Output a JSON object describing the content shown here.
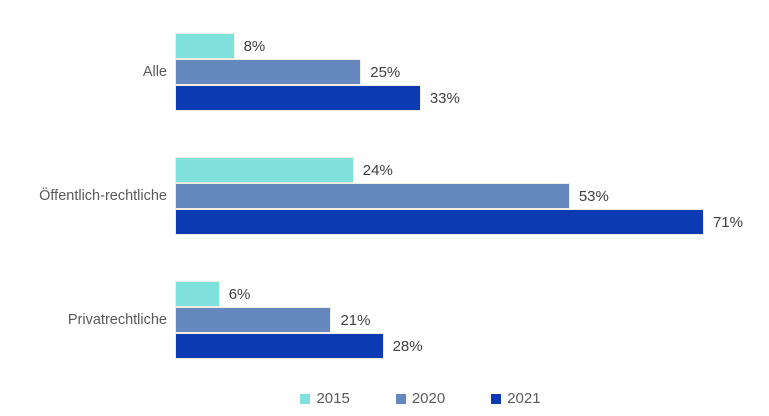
{
  "chart_data": {
    "type": "bar",
    "orientation": "horizontal",
    "title": "",
    "categories": [
      "Alle",
      "Öffentlich-rechtliche",
      "Privatrechtliche"
    ],
    "series": [
      {
        "name": "2015",
        "color": "#7FE0DC",
        "values": [
          8,
          24,
          6
        ]
      },
      {
        "name": "2020",
        "color": "#6588BE",
        "values": [
          25,
          53,
          21
        ]
      },
      {
        "name": "2021",
        "color": "#0B3AB2",
        "values": [
          33,
          71,
          28
        ]
      }
    ],
    "unit": "%",
    "value_label_format": "{value}%",
    "xlim": [
      0,
      79
    ],
    "grid": false,
    "axis_labels_visible": false,
    "legend_position": "bottom",
    "legend_labels": [
      "2015",
      "2020",
      "2021"
    ]
  },
  "colors": {
    "background": "#ffffff",
    "category_label": "#595959",
    "value_label": "#404040",
    "bar_border": "#f3ece0"
  }
}
